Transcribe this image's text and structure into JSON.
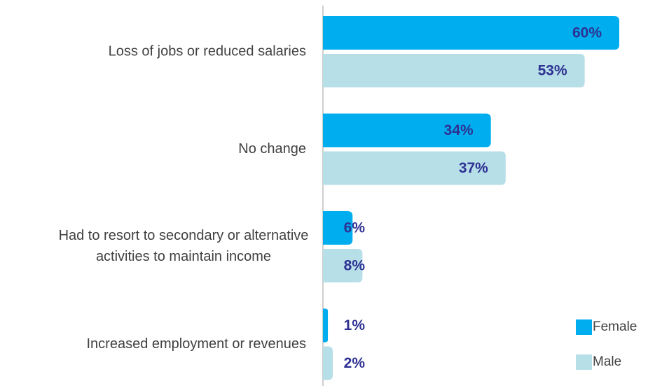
{
  "chart_data": {
    "type": "bar",
    "orientation": "horizontal",
    "categories": [
      "Loss of jobs or reduced salaries",
      "No change",
      "Had to resort to secondary or alternative activities to maintain income",
      "Increased employment or revenues"
    ],
    "series": [
      {
        "name": "Female",
        "color": "#00adef",
        "values": [
          60,
          34,
          6,
          1
        ],
        "value_labels": [
          "60%",
          "34%",
          "6%",
          "1%"
        ]
      },
      {
        "name": "Male",
        "color": "#b7dfe8",
        "values": [
          53,
          37,
          8,
          2
        ],
        "value_labels": [
          "53%",
          "37%",
          "8%",
          "2%"
        ]
      }
    ],
    "legend": "bottom-right"
  }
}
